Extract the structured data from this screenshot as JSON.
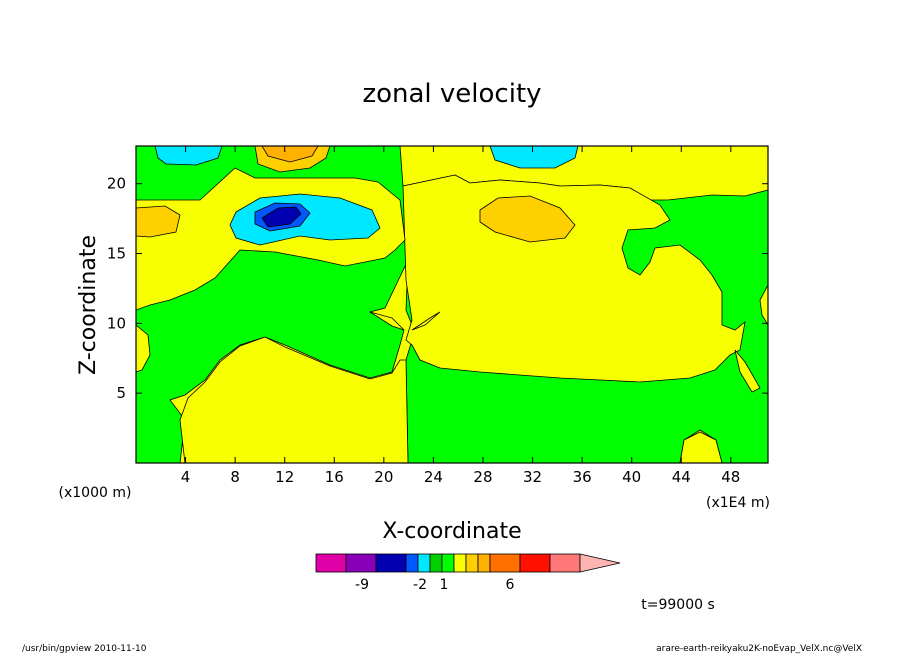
{
  "chart_data": {
    "type": "heatmap",
    "subtype": "filled-contour",
    "title": "zonal velocity",
    "xlabel": "X-coordinate",
    "ylabel": "Z-coordinate",
    "x_unit_left": "(x1000 m)",
    "x_unit_right": "(x1E4 m)",
    "x_ticks": [
      "4",
      "8",
      "12",
      "16",
      "20",
      "24",
      "28",
      "32",
      "36",
      "40",
      "44",
      "48"
    ],
    "x_tick_values": [
      4,
      8,
      12,
      16,
      20,
      24,
      28,
      32,
      36,
      40,
      44,
      48
    ],
    "y_ticks": [
      "5",
      "10",
      "15",
      "20"
    ],
    "y_tick_values": [
      5,
      10,
      15,
      20
    ],
    "xlim": [
      0,
      51
    ],
    "ylim": [
      0,
      22.7
    ],
    "time_label": "t=99000 s",
    "colorbar": {
      "colors": [
        "#e000a8",
        "#8800b8",
        "#0000b0",
        "#0058ff",
        "#00e8ff",
        "#00d000",
        "#00ff00",
        "#f8ff00",
        "#ffd000",
        "#ffb000",
        "#ff7000",
        "#ff1000",
        "#ff7878",
        "#ffb4b4"
      ],
      "tick_labels": [
        "-9",
        "-2",
        "1",
        "6"
      ],
      "extend": "max"
    }
  },
  "footer": {
    "left": "/usr/bin/gpview   2010-11-10",
    "right": "arare-earth-reikyaku2K-noEvap_VelX.nc@VelX"
  }
}
